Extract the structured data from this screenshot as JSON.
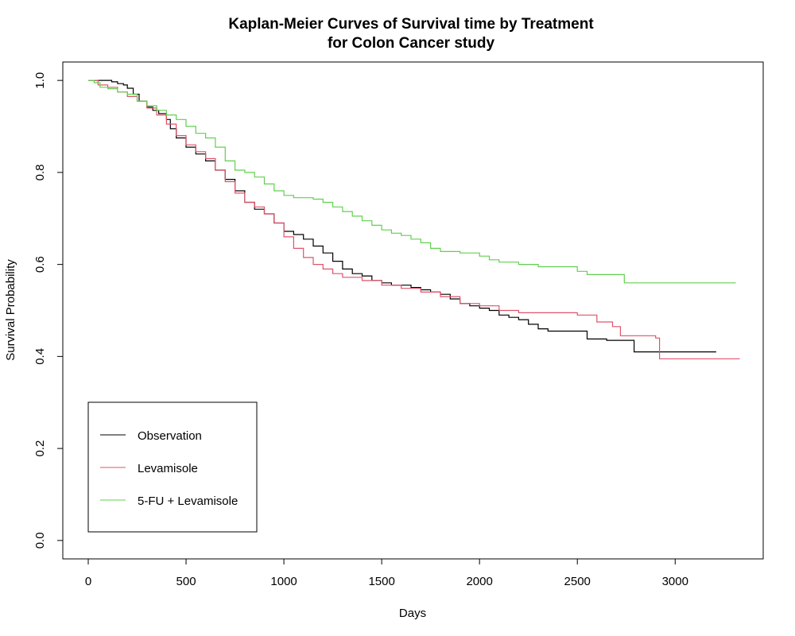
{
  "chart_data": {
    "type": "line",
    "title": "Kaplan-Meier Curves of Survival time by Treatment",
    "subtitle": "for Colon Cancer study",
    "xlabel": "Days",
    "ylabel": "Survival Probability",
    "xlim": [
      -130,
      3450
    ],
    "ylim": [
      -0.04,
      1.04
    ],
    "xticks": [
      0,
      500,
      1000,
      1500,
      2000,
      2500,
      3000
    ],
    "yticks": [
      0.0,
      0.2,
      0.4,
      0.6,
      0.8,
      1.0
    ],
    "xtick_labels": [
      "0",
      "500",
      "1000",
      "1500",
      "2000",
      "2500",
      "3000"
    ],
    "ytick_labels": [
      "0.0",
      "0.2",
      "0.4",
      "0.6",
      "0.8",
      "1.0"
    ],
    "grid": false,
    "legend_position": "bottom-left",
    "series": [
      {
        "name": "Observation",
        "color": "#000000",
        "points": [
          [
            0,
            1.0
          ],
          [
            30,
            1.0
          ],
          [
            100,
            1.0
          ],
          [
            120,
            0.997
          ],
          [
            150,
            0.993
          ],
          [
            180,
            0.99
          ],
          [
            200,
            0.983
          ],
          [
            230,
            0.97
          ],
          [
            260,
            0.955
          ],
          [
            300,
            0.942
          ],
          [
            330,
            0.935
          ],
          [
            360,
            0.928
          ],
          [
            400,
            0.915
          ],
          [
            420,
            0.895
          ],
          [
            450,
            0.875
          ],
          [
            500,
            0.855
          ],
          [
            550,
            0.84
          ],
          [
            600,
            0.825
          ],
          [
            650,
            0.805
          ],
          [
            700,
            0.785
          ],
          [
            750,
            0.76
          ],
          [
            800,
            0.735
          ],
          [
            850,
            0.72
          ],
          [
            900,
            0.71
          ],
          [
            950,
            0.69
          ],
          [
            1000,
            0.672
          ],
          [
            1050,
            0.665
          ],
          [
            1100,
            0.655
          ],
          [
            1150,
            0.64
          ],
          [
            1200,
            0.625
          ],
          [
            1250,
            0.607
          ],
          [
            1300,
            0.59
          ],
          [
            1350,
            0.58
          ],
          [
            1400,
            0.575
          ],
          [
            1450,
            0.565
          ],
          [
            1500,
            0.56
          ],
          [
            1550,
            0.555
          ],
          [
            1600,
            0.555
          ],
          [
            1650,
            0.55
          ],
          [
            1700,
            0.545
          ],
          [
            1750,
            0.54
          ],
          [
            1800,
            0.535
          ],
          [
            1850,
            0.525
          ],
          [
            1900,
            0.515
          ],
          [
            1950,
            0.51
          ],
          [
            2000,
            0.505
          ],
          [
            2050,
            0.5
          ],
          [
            2100,
            0.49
          ],
          [
            2150,
            0.485
          ],
          [
            2200,
            0.48
          ],
          [
            2250,
            0.47
          ],
          [
            2300,
            0.46
          ],
          [
            2350,
            0.455
          ],
          [
            2450,
            0.455
          ],
          [
            2550,
            0.438
          ],
          [
            2650,
            0.435
          ],
          [
            2780,
            0.435
          ],
          [
            2790,
            0.41
          ],
          [
            3210,
            0.41
          ]
        ]
      },
      {
        "name": "Levamisole",
        "color": "#DF536B",
        "points": [
          [
            0,
            1.0
          ],
          [
            50,
            0.99
          ],
          [
            100,
            0.985
          ],
          [
            150,
            0.975
          ],
          [
            200,
            0.965
          ],
          [
            250,
            0.955
          ],
          [
            300,
            0.94
          ],
          [
            350,
            0.925
          ],
          [
            400,
            0.905
          ],
          [
            450,
            0.88
          ],
          [
            500,
            0.86
          ],
          [
            550,
            0.845
          ],
          [
            600,
            0.83
          ],
          [
            650,
            0.805
          ],
          [
            700,
            0.78
          ],
          [
            750,
            0.755
          ],
          [
            800,
            0.735
          ],
          [
            850,
            0.725
          ],
          [
            900,
            0.71
          ],
          [
            950,
            0.69
          ],
          [
            1000,
            0.66
          ],
          [
            1050,
            0.635
          ],
          [
            1100,
            0.615
          ],
          [
            1150,
            0.6
          ],
          [
            1200,
            0.59
          ],
          [
            1250,
            0.58
          ],
          [
            1300,
            0.572
          ],
          [
            1400,
            0.565
          ],
          [
            1500,
            0.555
          ],
          [
            1600,
            0.548
          ],
          [
            1700,
            0.54
          ],
          [
            1800,
            0.53
          ],
          [
            1900,
            0.515
          ],
          [
            2000,
            0.51
          ],
          [
            2100,
            0.5
          ],
          [
            2200,
            0.495
          ],
          [
            2500,
            0.49
          ],
          [
            2600,
            0.475
          ],
          [
            2680,
            0.465
          ],
          [
            2720,
            0.445
          ],
          [
            2900,
            0.44
          ],
          [
            2920,
            0.395
          ],
          [
            3330,
            0.395
          ]
        ]
      },
      {
        "name": "5-FU + Levamisole",
        "color": "#61D04F",
        "points": [
          [
            0,
            1.0
          ],
          [
            30,
            0.995
          ],
          [
            60,
            0.985
          ],
          [
            100,
            0.982
          ],
          [
            150,
            0.975
          ],
          [
            200,
            0.97
          ],
          [
            250,
            0.955
          ],
          [
            300,
            0.945
          ],
          [
            350,
            0.935
          ],
          [
            400,
            0.925
          ],
          [
            450,
            0.915
          ],
          [
            500,
            0.9
          ],
          [
            550,
            0.885
          ],
          [
            600,
            0.875
          ],
          [
            650,
            0.855
          ],
          [
            700,
            0.825
          ],
          [
            750,
            0.805
          ],
          [
            800,
            0.8
          ],
          [
            850,
            0.79
          ],
          [
            900,
            0.775
          ],
          [
            950,
            0.76
          ],
          [
            1000,
            0.75
          ],
          [
            1050,
            0.745
          ],
          [
            1100,
            0.745
          ],
          [
            1150,
            0.742
          ],
          [
            1200,
            0.735
          ],
          [
            1250,
            0.725
          ],
          [
            1300,
            0.715
          ],
          [
            1350,
            0.705
          ],
          [
            1400,
            0.695
          ],
          [
            1450,
            0.685
          ],
          [
            1500,
            0.675
          ],
          [
            1550,
            0.668
          ],
          [
            1600,
            0.663
          ],
          [
            1650,
            0.655
          ],
          [
            1700,
            0.647
          ],
          [
            1750,
            0.635
          ],
          [
            1800,
            0.628
          ],
          [
            1900,
            0.625
          ],
          [
            2000,
            0.618
          ],
          [
            2050,
            0.61
          ],
          [
            2100,
            0.605
          ],
          [
            2200,
            0.6
          ],
          [
            2300,
            0.595
          ],
          [
            2450,
            0.595
          ],
          [
            2500,
            0.585
          ],
          [
            2550,
            0.578
          ],
          [
            2700,
            0.578
          ],
          [
            2740,
            0.56
          ],
          [
            3310,
            0.56
          ]
        ]
      }
    ]
  }
}
